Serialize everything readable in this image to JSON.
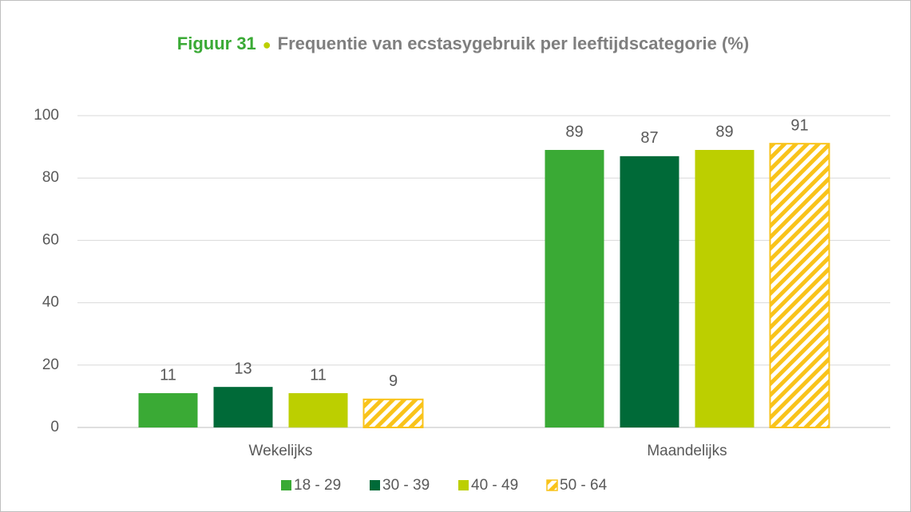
{
  "chart_data": {
    "type": "bar",
    "title_label": "Figuur 31",
    "title": "Frequentie van ecstasygebruik per leeftijdscategorie (%)",
    "categories": [
      "Wekelijks",
      "Maandelijks"
    ],
    "series": [
      {
        "name": "18 - 29",
        "color": "#3aaa35",
        "values": [
          11,
          89
        ]
      },
      {
        "name": "30 - 39",
        "color": "#006a38",
        "values": [
          13,
          87
        ]
      },
      {
        "name": "40 - 49",
        "color": "#bccf00",
        "values": [
          11,
          89
        ]
      },
      {
        "name": "50 - 64",
        "color": "#f9c31a",
        "pattern": "hatch",
        "values": [
          9,
          91
        ]
      }
    ],
    "ylim": [
      0,
      100
    ],
    "yticks": [
      0,
      20,
      40,
      60,
      80,
      100
    ],
    "grid": true,
    "legend": "bottom"
  }
}
